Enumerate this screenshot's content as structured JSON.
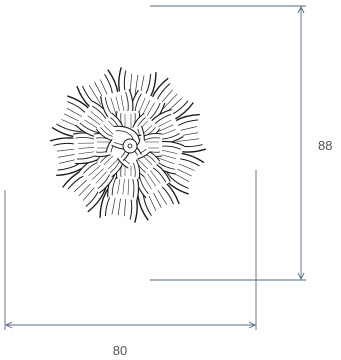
{
  "dimensions": {
    "width_label": "80",
    "height_label": "88"
  },
  "colors": {
    "drawing": "#1a1a1a",
    "dimension": "#4d6a8c",
    "dimension_text": "#555555"
  }
}
